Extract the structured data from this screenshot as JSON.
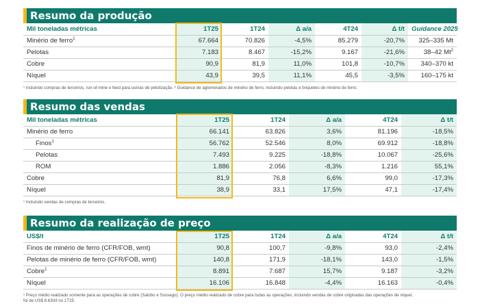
{
  "producao": {
    "title": "Resumo da produção",
    "headers": [
      "Mil toneladas métricas",
      "1T25",
      "1T24",
      "Δ a/a",
      "4T24",
      "Δ t/t",
      "Guidance 2025"
    ],
    "rows": [
      {
        "label": "Minério de ferro",
        "sup": "1",
        "cells": [
          "67.664",
          "70.826",
          "-4,5%",
          "85.279",
          "-20,7%",
          "325–335 Mt"
        ],
        "guidance_sup": ""
      },
      {
        "label": "Pelotas",
        "sup": "",
        "cells": [
          "7.183",
          "8.467",
          "-15,2%",
          "9.167",
          "-21,6%",
          "38–42 Mt"
        ],
        "guidance_sup": "2"
      },
      {
        "label": "Cobre",
        "sup": "",
        "cells": [
          "90,9",
          "81,9",
          "11,0%",
          "101,8",
          "-10,7%",
          "340–370 kt"
        ],
        "guidance_sup": ""
      },
      {
        "label": "Níquel",
        "sup": "",
        "cells": [
          "43,9",
          "39,5",
          "11,1%",
          "45,5",
          "-3,5%",
          "160–175 kt"
        ],
        "guidance_sup": ""
      }
    ],
    "footnote": "¹ Incluindo compras de terceiros, run-of-mine e feed para usinas de pelotização. ² Guidance de aglomerados de minério de ferro, incluindo pelotas e briquetes de minério de ferro."
  },
  "vendas": {
    "title": "Resumo das vendas",
    "headers": [
      "Mil toneladas métricas",
      "1T25",
      "1T24",
      "Δ a/a",
      "4T24",
      "Δ t/t"
    ],
    "rows": [
      {
        "label": "Minério de ferro",
        "sup": "",
        "cells": [
          "66.141",
          "63.826",
          "3,6%",
          "81.196",
          "-18,5%"
        ]
      },
      {
        "label": "Finos",
        "sup": "1",
        "cells": [
          "56.762",
          "52.546",
          "8,0%",
          "69.912",
          "-18,8%"
        ]
      },
      {
        "label": "Pelotas",
        "sup": "",
        "cells": [
          "7.493",
          "9.225",
          "-18,8%",
          "10.067",
          "-25,6%"
        ]
      },
      {
        "label": "ROM",
        "sup": "",
        "cells": [
          "1.886",
          "2.056",
          "-8,3%",
          "1.216",
          "55,1%"
        ]
      },
      {
        "label": "Cobre",
        "sup": "",
        "cells": [
          "81,9",
          "76,8",
          "6,6%",
          "99,0",
          "-17,3%"
        ]
      },
      {
        "label": "Níquel",
        "sup": "",
        "cells": [
          "38,9",
          "33,1",
          "17,5%",
          "47,1",
          "-17,4%"
        ]
      }
    ],
    "footnote": "¹ Incluindo vendas de compras de terceiros."
  },
  "preco": {
    "title": "Resumo da realização de preço",
    "headers": [
      "US$/t",
      "1T25",
      "1T24",
      "Δ a/a",
      "4T24",
      "Δ t/t"
    ],
    "rows": [
      {
        "label": "Finos de minério de ferro (CFR/FOB, wmt)",
        "sup": "",
        "cells": [
          "90,8",
          "100,7",
          "-9,8%",
          "93,0",
          "-2,4%"
        ]
      },
      {
        "label": "Pelotas de minério de ferro (CFR/FOB, wmt)",
        "sup": "",
        "cells": [
          "140,8",
          "171,9",
          "-18,1%",
          "143,0",
          "-1,5%"
        ]
      },
      {
        "label": "Cobre",
        "sup": "1",
        "cells": [
          "8.891",
          "7.687",
          "15,7%",
          "9.187",
          "-3,2%"
        ]
      },
      {
        "label": "Níquel",
        "sup": "",
        "cells": [
          "16.106",
          "16.848",
          "-4,4%",
          "16.163",
          "-0,4%"
        ]
      }
    ],
    "footnote_line1": "¹ Preço médio realizado somente para as operações de cobre (Salobo e Sossego). O preço médio realizado de cobre para todas as operações, incluindo vendas de cobre originadas das operações de níquel,",
    "footnote_line2": "foi de US$ 8.630/t no 1T25."
  },
  "colors": {
    "brand_green": "#0f7a6b",
    "highlight_yellow": "#f2b91a",
    "shade_mint": "#e3f4ef"
  }
}
